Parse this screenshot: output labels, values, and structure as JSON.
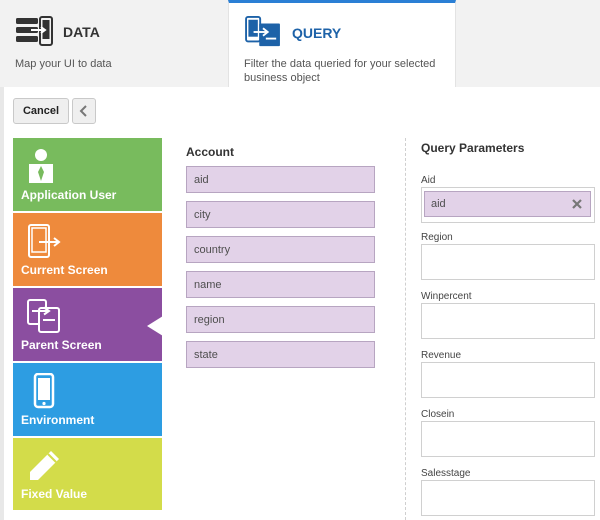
{
  "tabs": [
    {
      "title": "DATA",
      "description": "Map your UI to data"
    },
    {
      "title": "QUERY",
      "description": "Filter the data queried for your selected business object"
    }
  ],
  "toolbar": {
    "cancel_label": "Cancel"
  },
  "categories": [
    {
      "label": "Application User",
      "icon": "user-icon",
      "color": "#78bb5d"
    },
    {
      "label": "Current Screen",
      "icon": "screen-arrow-icon",
      "color": "#ee8a3c"
    },
    {
      "label": "Parent Screen",
      "icon": "stacked-screens-icon",
      "color": "#8b4ea0",
      "selected": true
    },
    {
      "label": "Environment",
      "icon": "mobile-device-icon",
      "color": "#2d9de2"
    },
    {
      "label": "Fixed Value",
      "icon": "pencil-icon",
      "color": "#d3dc4a"
    }
  ],
  "account": {
    "title": "Account",
    "fields": [
      "aid",
      "city",
      "country",
      "name",
      "region",
      "state"
    ]
  },
  "query_params": {
    "title": "Query Parameters",
    "params": [
      {
        "label": "Aid",
        "value": "aid"
      },
      {
        "label": "Region",
        "value": ""
      },
      {
        "label": "Winpercent",
        "value": ""
      },
      {
        "label": "Revenue",
        "value": ""
      },
      {
        "label": "Closein",
        "value": ""
      },
      {
        "label": "Salesstage",
        "value": ""
      }
    ]
  },
  "colors": {
    "accent": "#2a7fd5",
    "chip": "#e2d2e8"
  }
}
